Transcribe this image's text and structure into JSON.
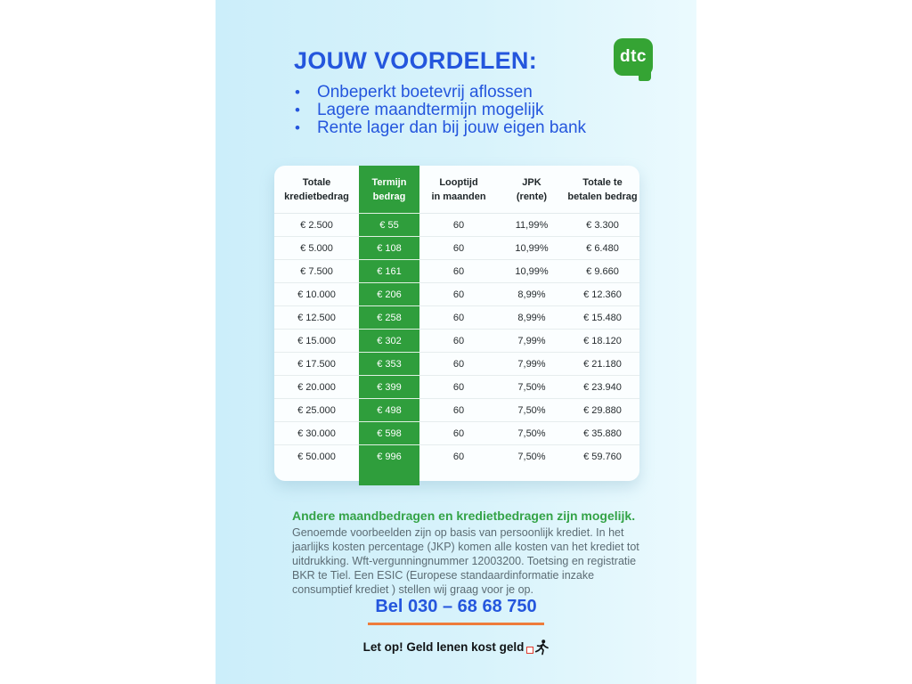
{
  "page": {
    "logo_text": "dtc",
    "title": "JOUW VOORDELEN:",
    "bullet_char": "•",
    "bullets": [
      "Onbeperkt boetevrij aflossen",
      "Lagere maandtermijn mogelijk",
      "Rente lager dan bij jouw eigen bank"
    ],
    "table": {
      "columns": [
        {
          "line1": "Totale",
          "line2": "kredietbedrag"
        },
        {
          "line1": "Termijn",
          "line2": "bedrag"
        },
        {
          "line1": "Looptijd",
          "line2": "in maanden"
        },
        {
          "line1": "JPK",
          "line2": "(rente)"
        },
        {
          "line1": "Totale te",
          "line2": "betalen bedrag"
        }
      ],
      "rows": [
        [
          "€ 2.500",
          "€ 55",
          "60",
          "11,99%",
          "€ 3.300"
        ],
        [
          "€ 5.000",
          "€ 108",
          "60",
          "10,99%",
          "€ 6.480"
        ],
        [
          "€ 7.500",
          "€ 161",
          "60",
          "10,99%",
          "€ 9.660"
        ],
        [
          "€ 10.000",
          "€ 206",
          "60",
          "8,99%",
          "€ 12.360"
        ],
        [
          "€ 12.500",
          "€ 258",
          "60",
          "8,99%",
          "€ 15.480"
        ],
        [
          "€ 15.000",
          "€ 302",
          "60",
          "7,99%",
          "€ 18.120"
        ],
        [
          "€ 17.500",
          "€ 353",
          "60",
          "7,99%",
          "€ 21.180"
        ],
        [
          "€ 20.000",
          "€ 399",
          "60",
          "7,50%",
          "€ 23.940"
        ],
        [
          "€ 25.000",
          "€ 498",
          "60",
          "7,50%",
          "€ 29.880"
        ],
        [
          "€ 30.000",
          "€ 598",
          "60",
          "7,50%",
          "€ 35.880"
        ],
        [
          "€ 50.000",
          "€ 996",
          "60",
          "7,50%",
          "€ 59.760"
        ]
      ]
    },
    "subheading": "Andere maandbedragen en kredietbedragen zijn mogelijk.",
    "disclaimer": "Genoemde voorbeelden zijn op basis van persoonlijk krediet. In het jaarlijks kosten percentage (JKP) komen alle kosten van het krediet tot uitdrukking. Wft-vergunningnummer 12003200. Toetsing en registratie BKR te Tiel. Een ESIC (Europese standaardinformatie inzake consumptief krediet ) stellen wij graag voor je op.",
    "phone_label": "Bel 030 – 68 68 750",
    "warning_text": "Let op! Geld lenen kost geld",
    "colors": {
      "accent_blue": "#2456dd",
      "table_green": "#2f9e3c",
      "logo_green": "#35a434",
      "heading_green": "#34a347",
      "underline_orange": "#ee7c3b",
      "body_gray": "#5c6c74",
      "warning_red": "#e03b2f",
      "page_bg_left": "#cceefa",
      "page_bg_right": "#ebfafe",
      "card_bg": "#fbfeff"
    }
  }
}
